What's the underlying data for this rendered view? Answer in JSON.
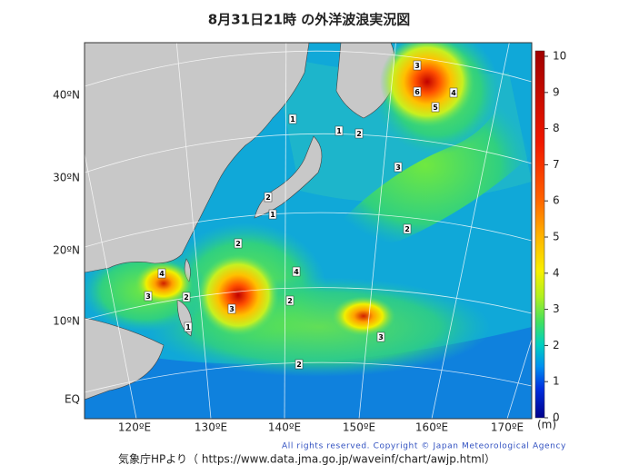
{
  "title": "8月31日21時 の外洋波浪実況図",
  "latitude_labels": [
    "40ºN",
    "30ºN",
    "20ºN",
    "10ºN",
    "EQ"
  ],
  "longitude_labels": [
    "120ºE",
    "130ºE",
    "140ºE",
    "150ºE",
    "160ºE",
    "170ºE"
  ],
  "colorbar": {
    "ticks": [
      0,
      1,
      2,
      3,
      4,
      5,
      6,
      7,
      8,
      9,
      10
    ],
    "unit": "(m)"
  },
  "contour_labels": [
    "3",
    "6",
    "4",
    "5",
    "1",
    "2",
    "1",
    "3",
    "2",
    "1",
    "2",
    "4",
    "3",
    "2",
    "4",
    "3",
    "2",
    "1",
    "3",
    "2",
    "2"
  ],
  "copyright": "All rights reserved. Copyright © Japan Meteorological Agency",
  "source": "気象庁HPより（ https://www.data.jma.go.jp/waveinf/chart/awjp.html）"
}
